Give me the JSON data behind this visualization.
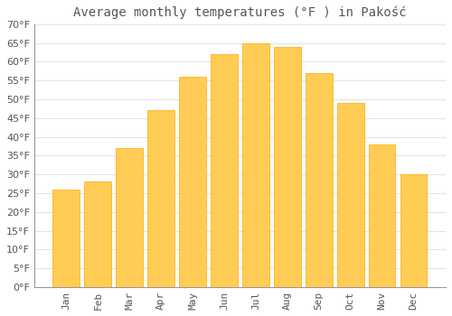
{
  "title": "Average monthly temperatures (°F ) in Pakość",
  "months": [
    "Jan",
    "Feb",
    "Mar",
    "Apr",
    "May",
    "Jun",
    "Jul",
    "Aug",
    "Sep",
    "Oct",
    "Nov",
    "Dec"
  ],
  "values": [
    26,
    28,
    37,
    47,
    56,
    62,
    65,
    64,
    57,
    49,
    38,
    30
  ],
  "bar_color_light": "#FFCC55",
  "bar_color_dark": "#FFAA00",
  "background_color": "#FFFFFF",
  "grid_color": "#DDDDDD",
  "text_color": "#555555",
  "ylim": [
    0,
    70
  ],
  "yticks": [
    0,
    5,
    10,
    15,
    20,
    25,
    30,
    35,
    40,
    45,
    50,
    55,
    60,
    65,
    70
  ],
  "title_fontsize": 10,
  "tick_fontsize": 8
}
